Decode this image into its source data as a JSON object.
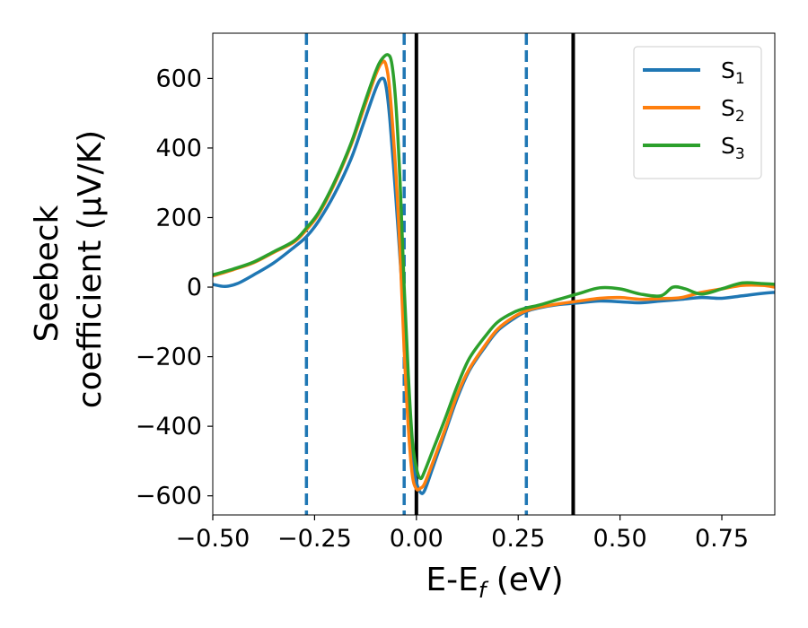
{
  "chart_data": {
    "type": "line",
    "title": "",
    "xlabel": "E-E",
    "xlabel_sub": "f",
    "xlabel_unit": " (eV)",
    "ylabel_line1": "Seebeck",
    "ylabel_line2": "coefficient  (μV/K)",
    "xlim": [
      -0.5,
      0.88
    ],
    "ylim": [
      -655,
      730
    ],
    "grid": false,
    "legend_position": "top-right",
    "x_ticks": [
      -0.5,
      -0.25,
      0.0,
      0.25,
      0.5,
      0.75
    ],
    "x_tick_labels": [
      "−0.50",
      "−0.25",
      "0.00",
      "0.25",
      "0.50",
      "0.75"
    ],
    "y_ticks": [
      -600,
      -400,
      -200,
      0,
      200,
      400,
      600
    ],
    "y_tick_labels": [
      "−600",
      "−400",
      "−200",
      "0",
      "200",
      "400",
      "600"
    ],
    "vlines": [
      {
        "x": -0.27,
        "style": "dashed",
        "color": "#1f77b4"
      },
      {
        "x": -0.03,
        "style": "dashed",
        "color": "#1f77b4"
      },
      {
        "x": 0.27,
        "style": "dashed",
        "color": "#1f77b4"
      },
      {
        "x": 0.0,
        "style": "solid",
        "color": "#000000"
      },
      {
        "x": 0.385,
        "style": "solid",
        "color": "#000000"
      }
    ],
    "series": [
      {
        "name": "S",
        "sub": "1",
        "color": "#1f77b4",
        "points": [
          [
            -0.5,
            8
          ],
          [
            -0.47,
            2
          ],
          [
            -0.44,
            10
          ],
          [
            -0.4,
            35
          ],
          [
            -0.35,
            70
          ],
          [
            -0.3,
            115
          ],
          [
            -0.27,
            145
          ],
          [
            -0.24,
            190
          ],
          [
            -0.2,
            270
          ],
          [
            -0.16,
            370
          ],
          [
            -0.13,
            470
          ],
          [
            -0.1,
            570
          ],
          [
            -0.085,
            600
          ],
          [
            -0.075,
            580
          ],
          [
            -0.065,
            480
          ],
          [
            -0.05,
            250
          ],
          [
            -0.04,
            80
          ],
          [
            -0.03,
            -100
          ],
          [
            -0.02,
            -320
          ],
          [
            -0.01,
            -480
          ],
          [
            0.0,
            -560
          ],
          [
            0.01,
            -590
          ],
          [
            0.02,
            -585
          ],
          [
            0.04,
            -520
          ],
          [
            0.07,
            -420
          ],
          [
            0.1,
            -320
          ],
          [
            0.13,
            -240
          ],
          [
            0.17,
            -170
          ],
          [
            0.2,
            -125
          ],
          [
            0.24,
            -90
          ],
          [
            0.27,
            -70
          ],
          [
            0.3,
            -60
          ],
          [
            0.35,
            -50
          ],
          [
            0.4,
            -45
          ],
          [
            0.45,
            -40
          ],
          [
            0.5,
            -42
          ],
          [
            0.55,
            -45
          ],
          [
            0.6,
            -40
          ],
          [
            0.65,
            -35
          ],
          [
            0.7,
            -30
          ],
          [
            0.75,
            -32
          ],
          [
            0.8,
            -25
          ],
          [
            0.85,
            -18
          ],
          [
            0.88,
            -15
          ]
        ]
      },
      {
        "name": "S",
        "sub": "2",
        "color": "#ff7f0e",
        "points": [
          [
            -0.5,
            32
          ],
          [
            -0.45,
            50
          ],
          [
            -0.4,
            70
          ],
          [
            -0.35,
            100
          ],
          [
            -0.3,
            130
          ],
          [
            -0.27,
            165
          ],
          [
            -0.24,
            210
          ],
          [
            -0.2,
            300
          ],
          [
            -0.16,
            410
          ],
          [
            -0.13,
            510
          ],
          [
            -0.1,
            610
          ],
          [
            -0.085,
            645
          ],
          [
            -0.075,
            640
          ],
          [
            -0.065,
            560
          ],
          [
            -0.05,
            320
          ],
          [
            -0.04,
            100
          ],
          [
            -0.03,
            -180
          ],
          [
            -0.02,
            -400
          ],
          [
            -0.01,
            -540
          ],
          [
            0.0,
            -580
          ],
          [
            0.01,
            -578
          ],
          [
            0.02,
            -565
          ],
          [
            0.04,
            -505
          ],
          [
            0.07,
            -410
          ],
          [
            0.1,
            -310
          ],
          [
            0.13,
            -235
          ],
          [
            0.17,
            -165
          ],
          [
            0.2,
            -120
          ],
          [
            0.24,
            -85
          ],
          [
            0.27,
            -68
          ],
          [
            0.3,
            -58
          ],
          [
            0.35,
            -48
          ],
          [
            0.4,
            -40
          ],
          [
            0.45,
            -32
          ],
          [
            0.5,
            -30
          ],
          [
            0.55,
            -35
          ],
          [
            0.6,
            -33
          ],
          [
            0.65,
            -30
          ],
          [
            0.7,
            -15
          ],
          [
            0.75,
            -5
          ],
          [
            0.8,
            5
          ],
          [
            0.85,
            5
          ],
          [
            0.88,
            0
          ]
        ]
      },
      {
        "name": "S",
        "sub": "3",
        "color": "#2ca02c",
        "points": [
          [
            -0.5,
            35
          ],
          [
            -0.45,
            52
          ],
          [
            -0.4,
            72
          ],
          [
            -0.35,
            102
          ],
          [
            -0.3,
            133
          ],
          [
            -0.27,
            170
          ],
          [
            -0.24,
            215
          ],
          [
            -0.2,
            305
          ],
          [
            -0.16,
            415
          ],
          [
            -0.13,
            520
          ],
          [
            -0.1,
            620
          ],
          [
            -0.085,
            655
          ],
          [
            -0.07,
            668
          ],
          [
            -0.06,
            640
          ],
          [
            -0.05,
            520
          ],
          [
            -0.04,
            300
          ],
          [
            -0.03,
            0
          ],
          [
            -0.02,
            -250
          ],
          [
            -0.01,
            -440
          ],
          [
            0.0,
            -520
          ],
          [
            0.01,
            -550
          ],
          [
            0.02,
            -530
          ],
          [
            0.04,
            -470
          ],
          [
            0.07,
            -380
          ],
          [
            0.1,
            -285
          ],
          [
            0.13,
            -205
          ],
          [
            0.17,
            -140
          ],
          [
            0.2,
            -100
          ],
          [
            0.24,
            -72
          ],
          [
            0.27,
            -60
          ],
          [
            0.3,
            -52
          ],
          [
            0.35,
            -35
          ],
          [
            0.4,
            -18
          ],
          [
            0.45,
            -2
          ],
          [
            0.5,
            -5
          ],
          [
            0.55,
            -20
          ],
          [
            0.6,
            -25
          ],
          [
            0.63,
            0
          ],
          [
            0.66,
            -5
          ],
          [
            0.7,
            -20
          ],
          [
            0.75,
            -5
          ],
          [
            0.8,
            12
          ],
          [
            0.85,
            10
          ],
          [
            0.88,
            8
          ]
        ]
      }
    ]
  }
}
